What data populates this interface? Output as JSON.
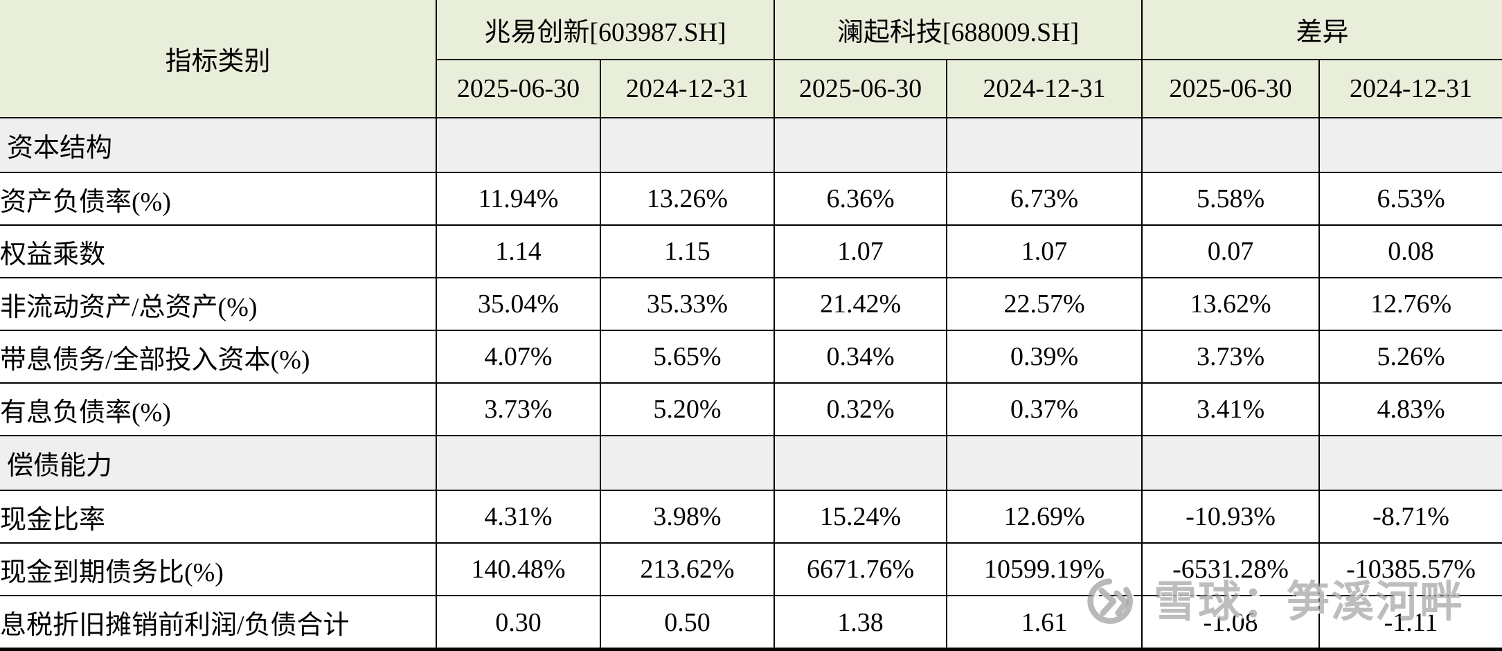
{
  "colors": {
    "page_bg": "#ffffff",
    "header_bg": "#e8eeda",
    "section_bg": "#efefef",
    "row_bg": "#ffffff",
    "border": "#000000",
    "text": "#000000",
    "watermark_gray": "#949494"
  },
  "watermark": {
    "text": "雪球：笋溪河畔",
    "logo_icon": "xueqiu-snowball-logo"
  },
  "chart_data": {
    "type": "table",
    "title": "",
    "header": {
      "category_label": "指标类别",
      "groups": [
        {
          "label": "兆易创新[603987.SH]",
          "dates": [
            "2025-06-30",
            "2024-12-31"
          ]
        },
        {
          "label": "澜起科技[688009.SH]",
          "dates": [
            "2025-06-30",
            "2024-12-31"
          ]
        },
        {
          "label": "差异",
          "dates": [
            "2025-06-30",
            "2024-12-31"
          ]
        }
      ]
    },
    "rows": [
      {
        "type": "section",
        "label": "资本结构",
        "values": [
          "",
          "",
          "",
          "",
          "",
          ""
        ]
      },
      {
        "type": "data",
        "label": "资产负债率(%)",
        "values": [
          "11.94%",
          "13.26%",
          "6.36%",
          "6.73%",
          "5.58%",
          "6.53%"
        ]
      },
      {
        "type": "data",
        "label": "权益乘数",
        "values": [
          "1.14",
          "1.15",
          "1.07",
          "1.07",
          "0.07",
          "0.08"
        ]
      },
      {
        "type": "data",
        "label": "非流动资产/总资产(%)",
        "values": [
          "35.04%",
          "35.33%",
          "21.42%",
          "22.57%",
          "13.62%",
          "12.76%"
        ]
      },
      {
        "type": "data",
        "label": "带息债务/全部投入资本(%)",
        "values": [
          "4.07%",
          "5.65%",
          "0.34%",
          "0.39%",
          "3.73%",
          "5.26%"
        ]
      },
      {
        "type": "data",
        "label": "有息负债率(%)",
        "values": [
          "3.73%",
          "5.20%",
          "0.32%",
          "0.37%",
          "3.41%",
          "4.83%"
        ]
      },
      {
        "type": "section",
        "label": "偿债能力",
        "values": [
          "",
          "",
          "",
          "",
          "",
          ""
        ]
      },
      {
        "type": "data",
        "label": "现金比率",
        "values": [
          "4.31%",
          "3.98%",
          "15.24%",
          "12.69%",
          "-10.93%",
          "-8.71%"
        ]
      },
      {
        "type": "data",
        "label": "现金到期债务比(%)",
        "values": [
          "140.48%",
          "213.62%",
          "6671.76%",
          "10599.19%",
          "-6531.28%",
          "-10385.57%"
        ]
      },
      {
        "type": "data",
        "label": "息税折旧摊销前利润/负债合计",
        "values": [
          "0.30",
          "0.50",
          "1.38",
          "1.61",
          "-1.08",
          "-1.11"
        ]
      }
    ]
  }
}
